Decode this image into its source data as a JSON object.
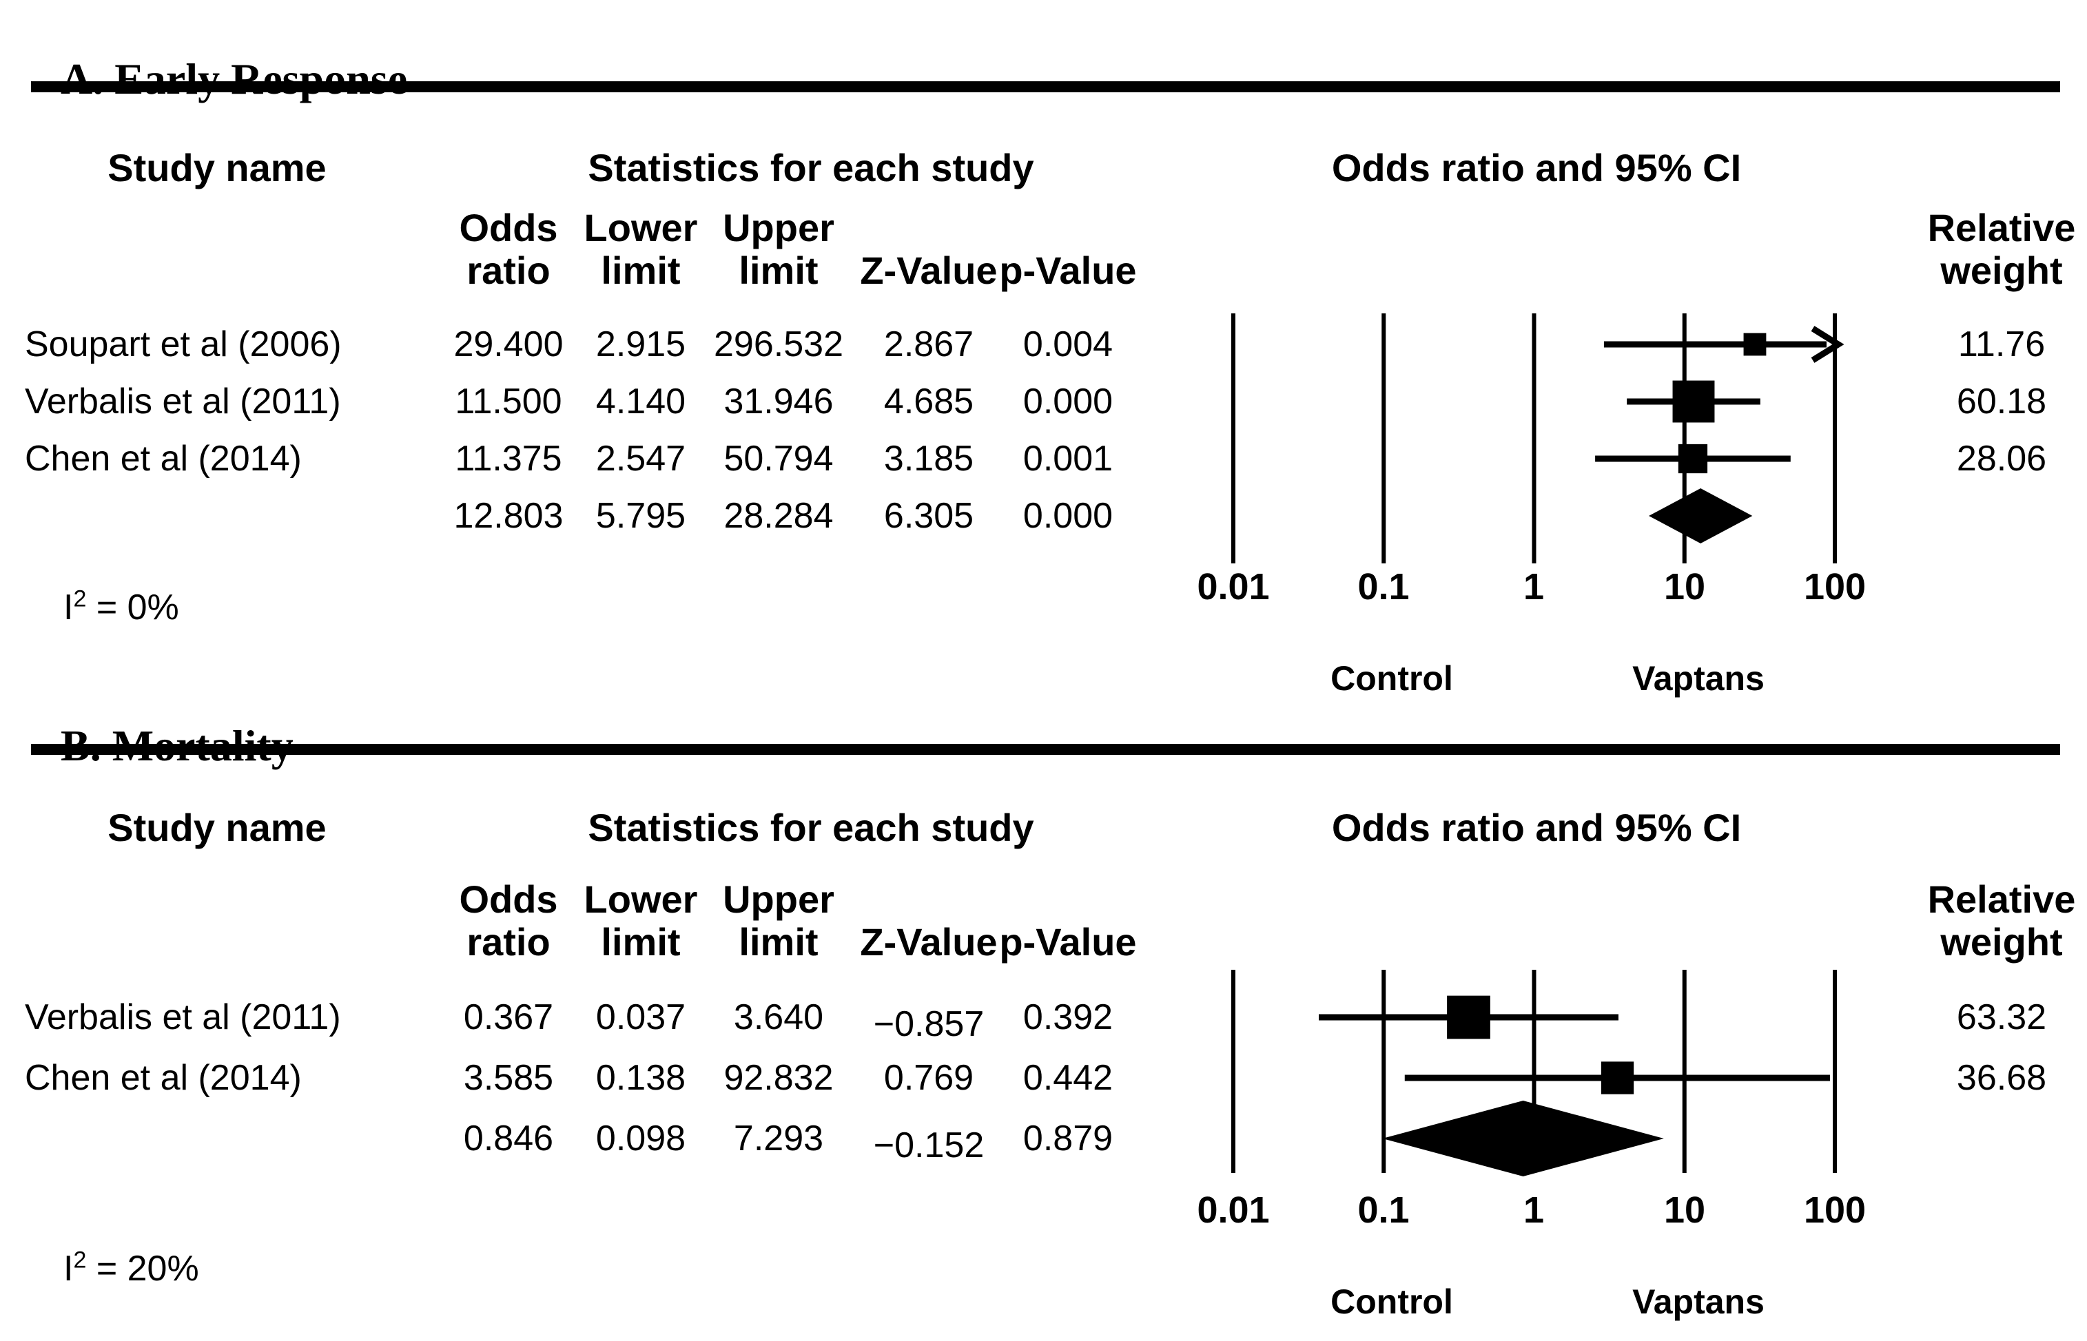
{
  "figure": {
    "panels": [
      {
        "title": "A. Early Response",
        "headers": {
          "study": "Study name",
          "stats": "Statistics for each study",
          "plot": "Odds ratio and 95% CI"
        },
        "subheaders": {
          "or": "Odds\nratio",
          "ll": "Lower\nlimit",
          "ul": "Upper\nlimit",
          "z": "Z-Value",
          "p": "p-Value",
          "weight": "Relative\nweight"
        },
        "rows": [
          {
            "study": "Soupart et al (2006)",
            "or": "29.400",
            "ll": "2.915",
            "ul": "296.532",
            "z": "2.867",
            "p": "0.004",
            "weight": "11.76"
          },
          {
            "study": "Verbalis et al (2011)",
            "or": "11.500",
            "ll": "4.140",
            "ul": "31.946",
            "z": "4.685",
            "p": "0.000",
            "weight": "60.18"
          },
          {
            "study": "Chen et al (2014)",
            "or": "11.375",
            "ll": "2.547",
            "ul": "50.794",
            "z": "3.185",
            "p": "0.001",
            "weight": "28.06"
          }
        ],
        "summary": {
          "or": "12.803",
          "ll": "5.795",
          "ul": "28.284",
          "z": "6.305",
          "p": "0.000"
        },
        "heterogeneity": {
          "base": "I",
          "sup": "2",
          "rest": " = 0%"
        },
        "axis_ticks": [
          "0.01",
          "0.1",
          "1",
          "10",
          "100"
        ],
        "arm_left": "Control",
        "arm_right": "Vaptans"
      },
      {
        "title": "B. Mortality",
        "headers": {
          "study": "Study name",
          "stats": "Statistics for each study",
          "plot": "Odds ratio and 95% CI"
        },
        "subheaders": {
          "or": "Odds\nratio",
          "ll": "Lower\nlimit",
          "ul": "Upper\nlimit",
          "z": "Z-Value",
          "p": "p-Value",
          "weight": "Relative\nweight"
        },
        "rows": [
          {
            "study": "Verbalis et al (2011)",
            "or": "0.367",
            "ll": "0.037",
            "ul": "3.640",
            "z": "−0.857",
            "p": "0.392",
            "weight": "63.32"
          },
          {
            "study": "Chen et al (2014)",
            "or": "3.585",
            "ll": "0.138",
            "ul": "92.832",
            "z": "0.769",
            "p": "0.442",
            "weight": "36.68"
          }
        ],
        "summary": {
          "or": "0.846",
          "ll": "0.098",
          "ul": "7.293",
          "z": "−0.152",
          "p": "0.879"
        },
        "heterogeneity": {
          "base": "I",
          "sup": "2",
          "rest": " = 20%"
        },
        "axis_ticks": [
          "0.01",
          "0.1",
          "1",
          "10",
          "100"
        ],
        "arm_left": "Control",
        "arm_right": "Vaptans"
      }
    ]
  },
  "chart_data": [
    {
      "type": "forest",
      "title": "A. Early Response",
      "effect_measure": "Odds ratio and 95% CI",
      "x_scale": "log10",
      "x_range": [
        0.01,
        100
      ],
      "x_ticks": [
        0.01,
        0.1,
        1,
        10,
        100
      ],
      "studies": [
        {
          "name": "Soupart et al (2006)",
          "or": 29.4,
          "ci": [
            2.915,
            296.532
          ],
          "z": 2.867,
          "p": 0.004,
          "weight": 11.76
        },
        {
          "name": "Verbalis et al (2011)",
          "or": 11.5,
          "ci": [
            4.14,
            31.946
          ],
          "z": 4.685,
          "p": 0.0,
          "weight": 60.18
        },
        {
          "name": "Chen et al (2014)",
          "or": 11.375,
          "ci": [
            2.547,
            50.794
          ],
          "z": 3.185,
          "p": 0.001,
          "weight": 28.06
        }
      ],
      "summary": {
        "or": 12.803,
        "ci": [
          5.795,
          28.284
        ],
        "z": 6.305,
        "p": 0.0
      },
      "i_squared": "0%",
      "favors_left": "Control",
      "favors_right": "Vaptans"
    },
    {
      "type": "forest",
      "title": "B. Mortality",
      "effect_measure": "Odds ratio and 95% CI",
      "x_scale": "log10",
      "x_range": [
        0.01,
        100
      ],
      "x_ticks": [
        0.01,
        0.1,
        1,
        10,
        100
      ],
      "studies": [
        {
          "name": "Verbalis et al (2011)",
          "or": 0.367,
          "ci": [
            0.037,
            3.64
          ],
          "z": -0.857,
          "p": 0.392,
          "weight": 63.32
        },
        {
          "name": "Chen et al (2014)",
          "or": 3.585,
          "ci": [
            0.138,
            92.832
          ],
          "z": 0.769,
          "p": 0.442,
          "weight": 36.68
        }
      ],
      "summary": {
        "or": 0.846,
        "ci": [
          0.098,
          7.293
        ],
        "z": -0.152,
        "p": 0.879
      },
      "i_squared": "20%",
      "favors_left": "Control",
      "favors_right": "Vaptans"
    }
  ],
  "colors": {
    "ink": "#000000",
    "background": "#ffffff"
  }
}
